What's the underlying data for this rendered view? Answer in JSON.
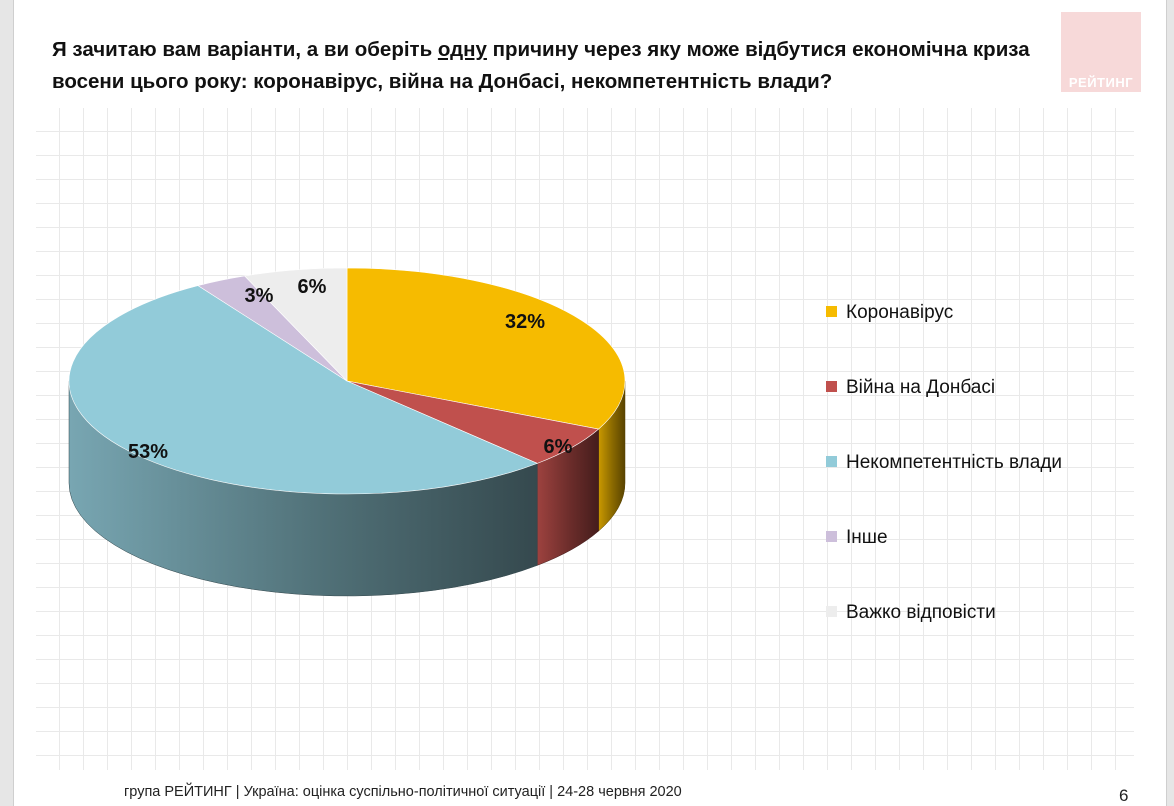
{
  "title": {
    "before": "Я зачитаю вам варіанти, а ви оберіть ",
    "underlined": "одну",
    "after": " причину через яку може відбутися економічна криза восени цього року: коронавірус, війна на Донбасі, некомпетентність влади?"
  },
  "logo": {
    "text": "РЕЙТИНГ"
  },
  "chart_data": {
    "type": "pie",
    "title": "Я зачитаю вам варіанти, а ви оберіть одну причину через яку може відбутися економічна криза восени цього року: коронавірус, війна на Донбасі, некомпетентність влади?",
    "legend_position": "right",
    "style": "3d",
    "slices": [
      {
        "name": "Коронавірус",
        "value": 32,
        "label": "32%",
        "color": "#f6bb00"
      },
      {
        "name": "Війна на Донбасі",
        "value": 6,
        "label": "6%",
        "color": "#c0504d"
      },
      {
        "name": "Некомпетентність влади",
        "value": 53,
        "label": "53%",
        "color": "#92cbd9"
      },
      {
        "name": "Інше",
        "value": 3,
        "label": "3%",
        "color": "#cdbfdb"
      },
      {
        "name": "Важко відповісти",
        "value": 6,
        "label": "6%",
        "color": "#ededed"
      }
    ]
  },
  "footer": {
    "text": "група РЕЙТИНГ |  Україна: оцінка суспільно-політичної  ситуації  | 24-28 червня  2020",
    "page": "6"
  }
}
